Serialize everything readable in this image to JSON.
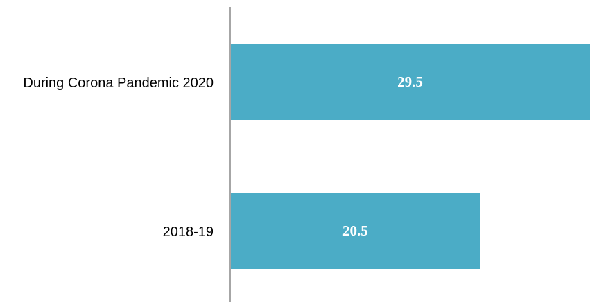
{
  "chart_data": {
    "type": "bar",
    "orientation": "horizontal",
    "categories": [
      "During Corona Pandemic 2020",
      "2018-19"
    ],
    "values": [
      29.5,
      20.5
    ],
    "color": "#4bacc6"
  }
}
